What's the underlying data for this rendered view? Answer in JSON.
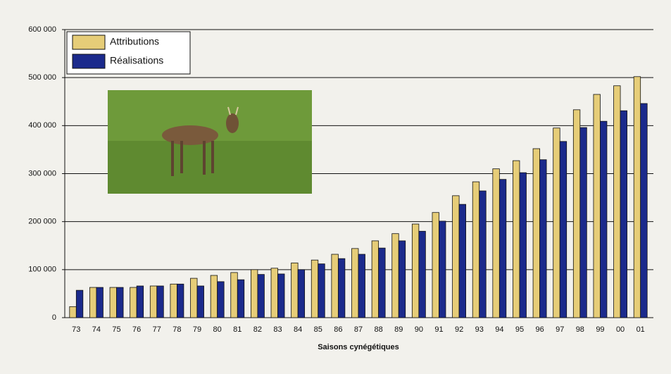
{
  "chart_data": {
    "type": "bar",
    "x_label": "Saisons cynégétiques",
    "categories": [
      "73",
      "74",
      "75",
      "76",
      "77",
      "78",
      "79",
      "80",
      "81",
      "82",
      "83",
      "84",
      "85",
      "86",
      "87",
      "88",
      "89",
      "90",
      "91",
      "92",
      "93",
      "94",
      "95",
      "96",
      "97",
      "98",
      "99",
      "00",
      "01"
    ],
    "series": [
      {
        "name": "Attributions",
        "color": "#e6cd78",
        "values": [
          23000,
          63000,
          63000,
          63000,
          66000,
          70000,
          82000,
          88000,
          94000,
          100000,
          103000,
          114000,
          120000,
          132000,
          144000,
          160000,
          175000,
          195000,
          219000,
          254000,
          283000,
          310000,
          327000,
          352000,
          395000,
          433000,
          465000,
          483000,
          502000
        ]
      },
      {
        "name": "Réalisations",
        "color": "#1b2a8c",
        "values": [
          57000,
          63000,
          63000,
          66000,
          66000,
          70000,
          66000,
          75000,
          79000,
          90000,
          91000,
          100000,
          112000,
          123000,
          132000,
          145000,
          160000,
          180000,
          201000,
          236000,
          264000,
          288000,
          302000,
          329000,
          367000,
          396000,
          409000,
          431000,
          446000
        ]
      }
    ],
    "ylim": [
      0,
      600000
    ],
    "yticks": [
      0,
      {
        "value": 100000,
        "label": "100 000"
      },
      {
        "value": 200000,
        "label": "200 000"
      },
      {
        "value": 300000,
        "label": "300 000"
      },
      {
        "value": 400000,
        "label": "400 000"
      },
      {
        "value": 500000,
        "label": "500 000"
      },
      {
        "value": 600000,
        "label": "600 000"
      }
    ],
    "grid": true
  }
}
